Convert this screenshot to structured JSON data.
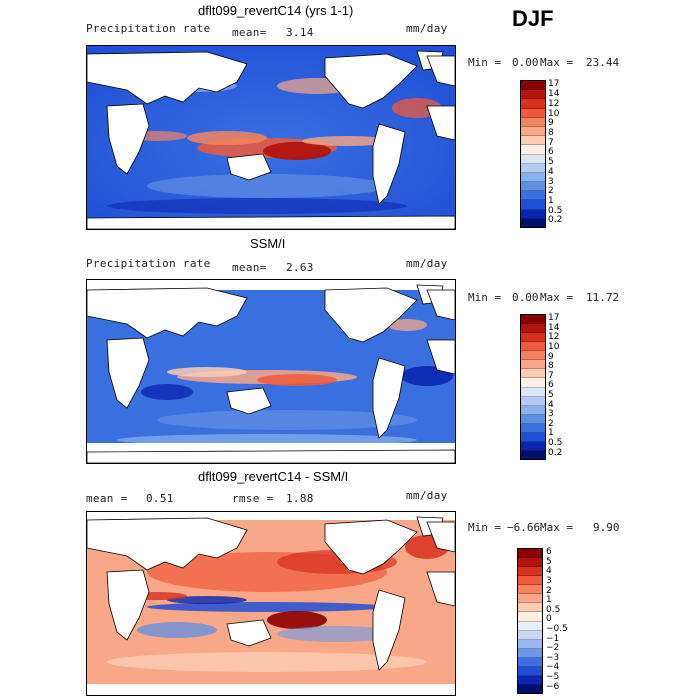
{
  "season": "DJF",
  "panels": [
    {
      "title": "dflt099_revertC14 (yrs 1-1)",
      "left_label": "Precipitation rate",
      "mean_label": "mean=",
      "mean_value": "3.14",
      "units": "mm/day",
      "min_label": "Min =",
      "min_value": "0.00",
      "max_label": "Max =",
      "max_value": "23.44",
      "colorbar_levels": [
        "17",
        "14",
        "12",
        "10",
        "9",
        "8",
        "7",
        "6",
        "5",
        "4",
        "3",
        "2",
        "1",
        "0.5",
        "0.2"
      ]
    },
    {
      "title": "SSM/I",
      "left_label": "Precipitation rate",
      "mean_label": "mean=",
      "mean_value": "2.63",
      "units": "mm/day",
      "min_label": "Min =",
      "min_value": "0.00",
      "max_label": "Max =",
      "max_value": "11.72",
      "colorbar_levels": [
        "17",
        "14",
        "12",
        "10",
        "9",
        "8",
        "7",
        "6",
        "5",
        "4",
        "3",
        "2",
        "1",
        "0.5",
        "0.2"
      ]
    },
    {
      "title": "dflt099_revertC14 - SSM/I",
      "left_label": "mean =",
      "left_value": "0.51",
      "rmse_label": "rmse =",
      "rmse_value": "1.88",
      "units": "mm/day",
      "min_label": "Min =",
      "min_value": "−6.66",
      "max_label": "Max =",
      "max_value": "9.90",
      "colorbar_levels": [
        "6",
        "5",
        "4",
        "3",
        "2",
        "1",
        "0.5",
        "0",
        "−0.5",
        "−1",
        "−2",
        "−3",
        "−4",
        "−5",
        "−6"
      ]
    }
  ],
  "colors": {
    "precip_scale": [
      "#8b0000",
      "#b3140d",
      "#d7301f",
      "#ef5a3a",
      "#f4845f",
      "#f8a888",
      "#fbccb4",
      "#fdeee6",
      "#dbe6f7",
      "#b3cdf2",
      "#8ab2ec",
      "#5f8fe3",
      "#3a6fe0",
      "#1f4fd6",
      "#0b25b0",
      "#00106e"
    ],
    "diff_scale": [
      "#8b0000",
      "#b3140d",
      "#d7301f",
      "#ef5a3a",
      "#f4845f",
      "#f8a888",
      "#fbccb4",
      "#fdeee6",
      "#e8eef9",
      "#c7d6f4",
      "#9ab9ee",
      "#6c97e6",
      "#3f6fe0",
      "#1f4fd6",
      "#0b25b0",
      "#00106e"
    ]
  }
}
